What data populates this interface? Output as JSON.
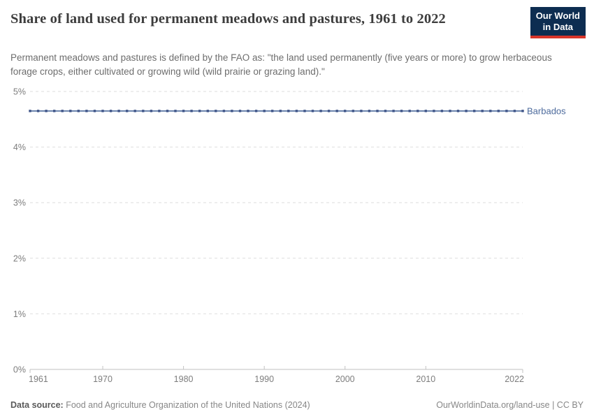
{
  "header": {
    "title": "Share of land used for permanent meadows and pastures, 1961 to 2022",
    "subtitle": "Permanent meadows and pastures is defined by the FAO as: \"the land used permanently (five years or more) to grow herbaceous forage crops, either cultivated or growing wild (wild prairie or grazing land).\"",
    "logo": {
      "line1": "Our World",
      "line2": "in Data",
      "bg_color": "#0d2d51",
      "accent_color": "#d8352a"
    }
  },
  "chart_data": {
    "type": "line",
    "title": "Share of land used for permanent meadows and pastures, 1961 to 2022",
    "xlabel": "",
    "ylabel": "",
    "xlim": [
      1961,
      2022
    ],
    "ylim": [
      0,
      5
    ],
    "grid": "dashed-horizontal",
    "legend": "end-of-line-label",
    "yticks": [
      0,
      1,
      2,
      3,
      4,
      5
    ],
    "ytick_labels": [
      "0%",
      "1%",
      "2%",
      "3%",
      "4%",
      "5%"
    ],
    "xticks": [
      1961,
      1970,
      1980,
      1990,
      2000,
      2010,
      2022
    ],
    "xtick_labels": [
      "1961",
      "1970",
      "1980",
      "1990",
      "2000",
      "2010",
      "2022"
    ],
    "colors": {
      "grid": "#dedede",
      "axis": "#c2c2c2",
      "tick_text": "#7d7d7d"
    },
    "series": [
      {
        "name": "Barbados",
        "color": "#4C6A9C",
        "marker_color": "#3d5387",
        "x": [
          1961,
          1962,
          1963,
          1964,
          1965,
          1966,
          1967,
          1968,
          1969,
          1970,
          1971,
          1972,
          1973,
          1974,
          1975,
          1976,
          1977,
          1978,
          1979,
          1980,
          1981,
          1982,
          1983,
          1984,
          1985,
          1986,
          1987,
          1988,
          1989,
          1990,
          1991,
          1992,
          1993,
          1994,
          1995,
          1996,
          1997,
          1998,
          1999,
          2000,
          2001,
          2002,
          2003,
          2004,
          2005,
          2006,
          2007,
          2008,
          2009,
          2010,
          2011,
          2012,
          2013,
          2014,
          2015,
          2016,
          2017,
          2018,
          2019,
          2020,
          2021,
          2022
        ],
        "y": [
          4.65,
          4.65,
          4.65,
          4.65,
          4.65,
          4.65,
          4.65,
          4.65,
          4.65,
          4.65,
          4.65,
          4.65,
          4.65,
          4.65,
          4.65,
          4.65,
          4.65,
          4.65,
          4.65,
          4.65,
          4.65,
          4.65,
          4.65,
          4.65,
          4.65,
          4.65,
          4.65,
          4.65,
          4.65,
          4.65,
          4.65,
          4.65,
          4.65,
          4.65,
          4.65,
          4.65,
          4.65,
          4.65,
          4.65,
          4.65,
          4.65,
          4.65,
          4.65,
          4.65,
          4.65,
          4.65,
          4.65,
          4.65,
          4.65,
          4.65,
          4.65,
          4.65,
          4.65,
          4.65,
          4.65,
          4.65,
          4.65,
          4.65,
          4.65,
          4.65,
          4.65,
          4.65
        ]
      }
    ]
  },
  "footer": {
    "source_label": "Data source:",
    "source_text": " Food and Agriculture Organization of the United Nations (2024)",
    "rights": "OurWorldinData.org/land-use | CC BY"
  }
}
